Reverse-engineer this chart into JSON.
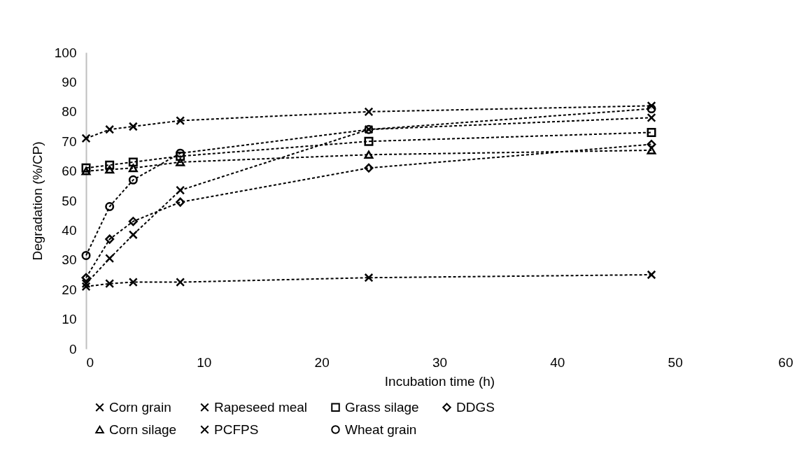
{
  "chart_data": {
    "type": "line",
    "xlabel": "Incubation time (h)",
    "ylabel": "Degradation (%/CP)",
    "x": [
      0,
      2,
      4,
      8,
      24,
      48
    ],
    "series": [
      {
        "name": "Corn grain",
        "color": "#000000",
        "marker": "cross",
        "values": [
          21,
          22,
          22.5,
          22.5,
          24,
          25
        ]
      },
      {
        "name": "Rapeseed meal",
        "color": "#000000",
        "marker": "cross",
        "values": [
          22,
          30.5,
          38.5,
          53.5,
          74,
          78
        ]
      },
      {
        "name": "Grass silage",
        "color": "#000000",
        "marker": "square",
        "values": [
          61,
          62,
          63,
          65,
          70,
          73
        ]
      },
      {
        "name": "DDGS",
        "color": "#000000",
        "marker": "diamond",
        "values": [
          24,
          37,
          43,
          49.5,
          61,
          69
        ]
      },
      {
        "name": "Corn silage",
        "color": "#000000",
        "marker": "triangle",
        "values": [
          60,
          60.5,
          61,
          63,
          65.5,
          67
        ]
      },
      {
        "name": "PCFPS",
        "color": "#000000",
        "marker": "cross",
        "values": [
          71,
          74,
          75,
          77,
          80,
          82
        ]
      },
      {
        "name": "Wheat grain",
        "color": "#000000",
        "marker": "circle",
        "values": [
          31.5,
          48,
          57,
          66,
          74,
          81
        ]
      }
    ],
    "xlim": [
      0,
      60
    ],
    "xticks": [
      0,
      10,
      20,
      30,
      40,
      50,
      60
    ],
    "ylim": [
      0,
      100
    ],
    "yticks": [
      0,
      10,
      20,
      30,
      40,
      50,
      60,
      70,
      80,
      90,
      100
    ],
    "grid": false,
    "legend": "bottom",
    "line_style": "dashed"
  }
}
